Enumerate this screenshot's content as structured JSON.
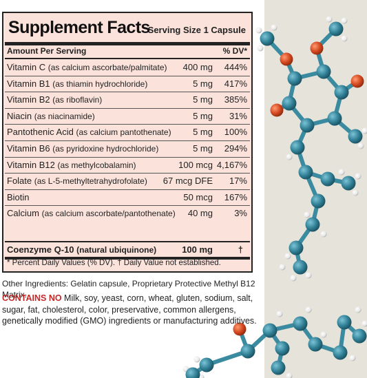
{
  "panel": {
    "title": "Supplement Facts",
    "serving_size": "Serving Size 1 Capsule",
    "header_amount": "Amount Per Serving",
    "header_dv": "% DV*",
    "rows": [
      {
        "name": "Vitamin C",
        "detail": "(as calcium ascorbate/palmitate)",
        "amount": "400 mg",
        "dv": "444%"
      },
      {
        "name": "Vitamin B1",
        "detail": "(as thiamin hydrochloride)",
        "amount": "5 mg",
        "dv": "417%"
      },
      {
        "name": "Vitamin B2",
        "detail": "(as riboflavin)",
        "amount": "5 mg",
        "dv": "385%"
      },
      {
        "name": "Niacin",
        "detail": "(as niacinamide)",
        "amount": "5 mg",
        "dv": "31%"
      },
      {
        "name": "Pantothenic Acid",
        "detail": "(as calcium pantothenate)",
        "amount": "5 mg",
        "dv": "100%"
      },
      {
        "name": "Vitamin B6",
        "detail": "(as pyridoxine hydrochloride)",
        "amount": "5 mg",
        "dv": "294%"
      },
      {
        "name": "Vitamin B12",
        "detail": "(as methylcobalamin)",
        "amount": "100 mcg",
        "dv": "4,167%"
      },
      {
        "name": "Folate",
        "detail": "(as L-5-methyltetrahydrofolate)",
        "amount": "67 mcg DFE",
        "dv": "17%"
      },
      {
        "name": "Biotin",
        "detail": "",
        "amount": "50 mcg",
        "dv": "167%"
      },
      {
        "name": "Calcium",
        "detail": "(as calcium ascorbate/pantothenate)",
        "amount": "40 mg",
        "dv": "3%"
      }
    ],
    "highlight_row": {
      "name": "Coenzyme Q-10",
      "detail": "(natural ubiquinone)",
      "amount": "100 mg",
      "dv": "†"
    },
    "footnote": "* Percent Daily Values (% DV). † Daily Value not established."
  },
  "other_ingredients": "Other Ingredients: Gelatin capsule, Proprietary Protective Methyl B12 Matrix.",
  "contains": {
    "lead": "CONTAINS NO",
    "text": " Milk, soy, yeast, corn, wheat, gluten, sodium, salt, sugar, fat, cholesterol, color, preservative, common allergens, genetically modified (GMO) ingredients or manufacturing additives."
  },
  "colors": {
    "panel_bg": "#fbe3dc",
    "side_bg": "#e5e3da",
    "contains_red": "#c62828",
    "carbon": "#2f7e94",
    "oxygen": "#d2461e",
    "hydrogen": "#f4f4f4"
  }
}
